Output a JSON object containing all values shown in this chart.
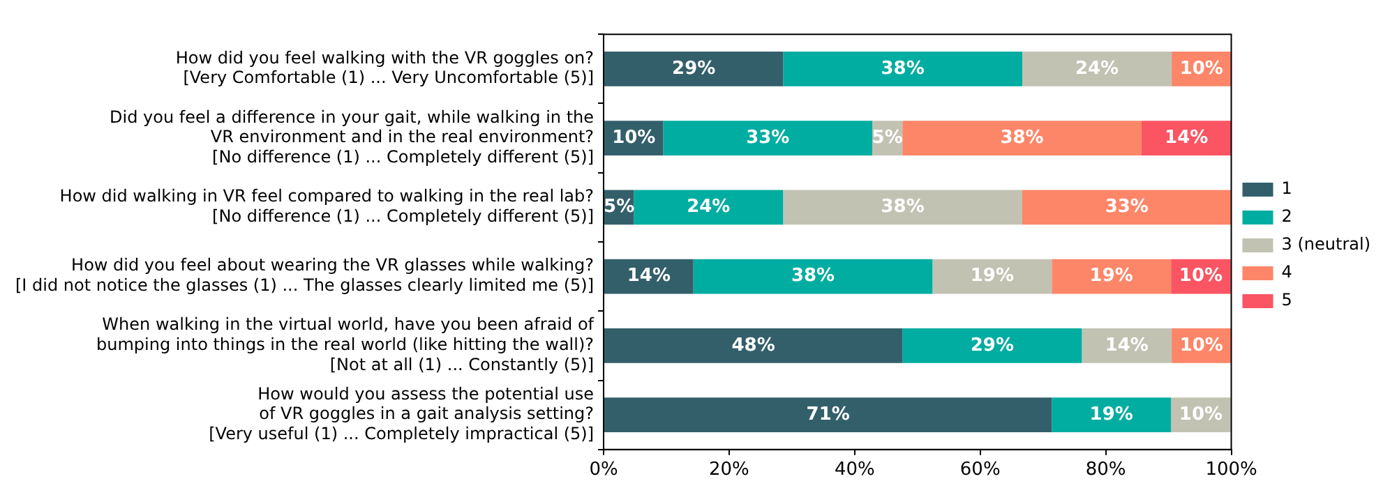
{
  "chart_data": {
    "type": "bar",
    "orientation": "horizontal",
    "stacked": true,
    "categories": [
      "How did you feel walking with the VR goggles on?\n[Very Comfortable (1) ... Very Uncomfortable (5)]",
      "Did you feel a difference in your gait, while walking in the\nVR environment and in the real environment?\n[No difference (1) ... Completely different (5)]",
      "How did walking in VR feel compared to walking in the real lab?\n[No difference (1) ... Completely different (5)]",
      "How did you feel about wearing the VR glasses while walking?\n[I did not notice the glasses (1) ... The glasses clearly limited me (5)]",
      "When walking in the virtual world, have you been afraid of\nbumping into things in the real world (like hitting the wall)?\n[Not at all (1) ... Constantly (5)]",
      "How would you assess the potential use\nof VR goggles in a gait analysis setting?\n[Very useful (1) ... Completely impractical (5)]"
    ],
    "series": [
      {
        "name": "1",
        "color": "#335f6b",
        "values": [
          28.6,
          9.5,
          4.8,
          14.3,
          47.6,
          71.4
        ],
        "value_labels": [
          "29%",
          "10%",
          "5%",
          "14%",
          "48%",
          "71%"
        ]
      },
      {
        "name": "2",
        "color": "#00ada0",
        "values": [
          38.1,
          33.3,
          23.8,
          38.1,
          28.6,
          19.0
        ],
        "value_labels": [
          "38%",
          "33%",
          "24%",
          "38%",
          "29%",
          "19%"
        ]
      },
      {
        "name": "3 (neutral)",
        "color": "#c2c2b3",
        "values": [
          23.8,
          4.8,
          38.1,
          19.0,
          14.3,
          9.5
        ],
        "value_labels": [
          "24%",
          "5%",
          "38%",
          "19%",
          "14%",
          "10%"
        ]
      },
      {
        "name": "4",
        "color": "#fd8669",
        "values": [
          9.5,
          38.1,
          33.3,
          19.0,
          9.5,
          0
        ],
        "value_labels": [
          "10%",
          "38%",
          "33%",
          "19%",
          "10%",
          null
        ]
      },
      {
        "name": "5",
        "color": "#fb5462",
        "values": [
          0,
          14.3,
          0,
          9.5,
          0,
          0
        ],
        "value_labels": [
          null,
          "14%",
          null,
          "10%",
          null,
          null
        ]
      }
    ],
    "xlim": [
      0,
      100
    ],
    "xticks": [
      {
        "value": 0,
        "label": "0%"
      },
      {
        "value": 20,
        "label": "20%"
      },
      {
        "value": 40,
        "label": "40%"
      },
      {
        "value": 60,
        "label": "60%"
      },
      {
        "value": 80,
        "label": "80%"
      },
      {
        "value": 100,
        "label": "100%"
      }
    ],
    "grid": false,
    "legend": "right"
  }
}
